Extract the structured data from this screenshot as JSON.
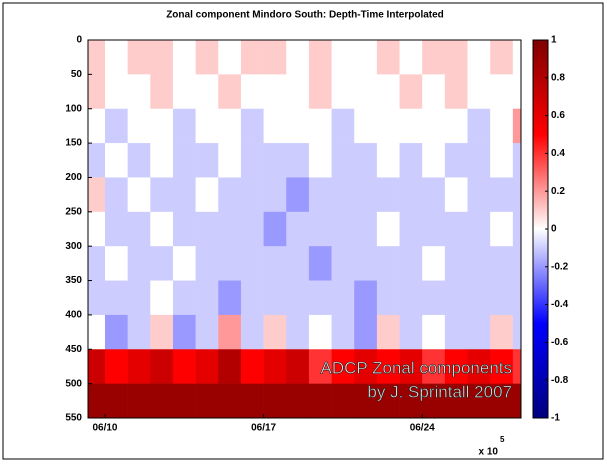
{
  "chart_data": {
    "type": "heatmap",
    "title": "Zonal component Mindoro South: Depth-Time Interpolated",
    "annotation": [
      "ADCP Zonal components",
      "by J. Sprintall 2007"
    ],
    "x_exponent": {
      "base": "x 10",
      "power": 5
    },
    "xlim": [
      9.25,
      28.36
    ],
    "xticks": [
      {
        "value": 10,
        "label": "06/10"
      },
      {
        "value": 17,
        "label": "06/17"
      },
      {
        "value": 24,
        "label": "06/24"
      }
    ],
    "ylim": [
      0,
      550
    ],
    "y_reversed": true,
    "yticks": [
      0,
      50,
      100,
      150,
      200,
      250,
      300,
      350,
      400,
      450,
      500,
      550
    ],
    "x_edges": [
      9.25,
      10,
      11,
      12,
      13,
      14,
      15,
      16,
      17,
      18,
      19,
      20,
      21,
      22,
      23,
      24,
      25,
      26,
      27,
      28,
      28.36
    ],
    "y_edges": [
      0,
      50,
      100,
      150,
      200,
      250,
      300,
      350,
      400,
      450,
      500,
      550
    ],
    "z": [
      [
        0.1,
        0,
        0.1,
        0.1,
        0,
        0.1,
        0,
        0.1,
        0.1,
        0,
        0.1,
        0,
        0,
        0.1,
        0,
        0.1,
        0.1,
        0,
        0.1,
        0
      ],
      [
        0.1,
        0,
        0,
        0.1,
        0,
        0,
        0.1,
        0,
        0,
        0,
        0.1,
        0,
        0,
        0,
        0.1,
        0,
        0.1,
        0,
        0,
        0
      ],
      [
        0,
        -0.1,
        0,
        0,
        -0.1,
        0,
        0,
        -0.1,
        0,
        0,
        0,
        -0.1,
        0,
        0,
        0,
        0,
        0,
        -0.1,
        0,
        0.2
      ],
      [
        -0.1,
        0,
        -0.1,
        0,
        -0.1,
        -0.1,
        0,
        -0.1,
        -0.1,
        -0.1,
        0,
        -0.1,
        -0.1,
        0,
        -0.1,
        0,
        -0.1,
        -0.1,
        0,
        -0.1
      ],
      [
        0.1,
        -0.1,
        0,
        -0.1,
        -0.1,
        0,
        -0.1,
        -0.1,
        -0.1,
        -0.2,
        -0.1,
        -0.1,
        -0.1,
        -0.1,
        -0.1,
        -0.1,
        0,
        -0.1,
        -0.1,
        -0.1
      ],
      [
        0,
        -0.1,
        -0.1,
        0,
        -0.1,
        -0.1,
        -0.1,
        -0.1,
        -0.2,
        -0.1,
        -0.1,
        -0.1,
        -0.1,
        0,
        -0.1,
        -0.1,
        -0.1,
        -0.1,
        0,
        -0.1
      ],
      [
        -0.1,
        0,
        -0.1,
        -0.1,
        0,
        -0.1,
        -0.1,
        -0.1,
        -0.1,
        -0.1,
        -0.2,
        -0.1,
        -0.1,
        -0.1,
        -0.1,
        0,
        -0.1,
        -0.1,
        -0.1,
        -0.1
      ],
      [
        -0.1,
        -0.1,
        -0.1,
        0,
        -0.1,
        -0.1,
        -0.2,
        -0.1,
        -0.1,
        -0.1,
        -0.1,
        -0.1,
        -0.2,
        -0.1,
        -0.1,
        -0.1,
        -0.1,
        -0.1,
        -0.1,
        -0.1
      ],
      [
        0,
        -0.2,
        -0.1,
        0.1,
        -0.2,
        -0.1,
        0.2,
        -0.1,
        0.1,
        -0.1,
        0,
        -0.1,
        -0.2,
        0.1,
        -0.1,
        0,
        -0.1,
        -0.1,
        0.1,
        -0.1
      ],
      [
        0.7,
        0.5,
        0.6,
        0.7,
        0.5,
        0.6,
        0.8,
        0.5,
        0.6,
        0.7,
        0.4,
        0.5,
        0.6,
        0.5,
        0.6,
        0.4,
        0.5,
        0.6,
        0.5,
        0.4
      ],
      [
        0.9,
        0.9,
        0.9,
        0.9,
        0.9,
        0.9,
        0.9,
        0.9,
        0.9,
        0.9,
        0.9,
        0.9,
        0.9,
        0.9,
        0.9,
        0.9,
        0.9,
        0.9,
        0.9,
        0.9
      ]
    ],
    "clim": [
      -1,
      1
    ],
    "cticks": [
      -1,
      -0.8,
      -0.6,
      -0.4,
      -0.2,
      0,
      0.2,
      0.4,
      0.6,
      0.8,
      1
    ],
    "colormap": [
      "#00007f",
      "#0000ff",
      "#ffffff",
      "#ff0000",
      "#7f0000"
    ]
  }
}
